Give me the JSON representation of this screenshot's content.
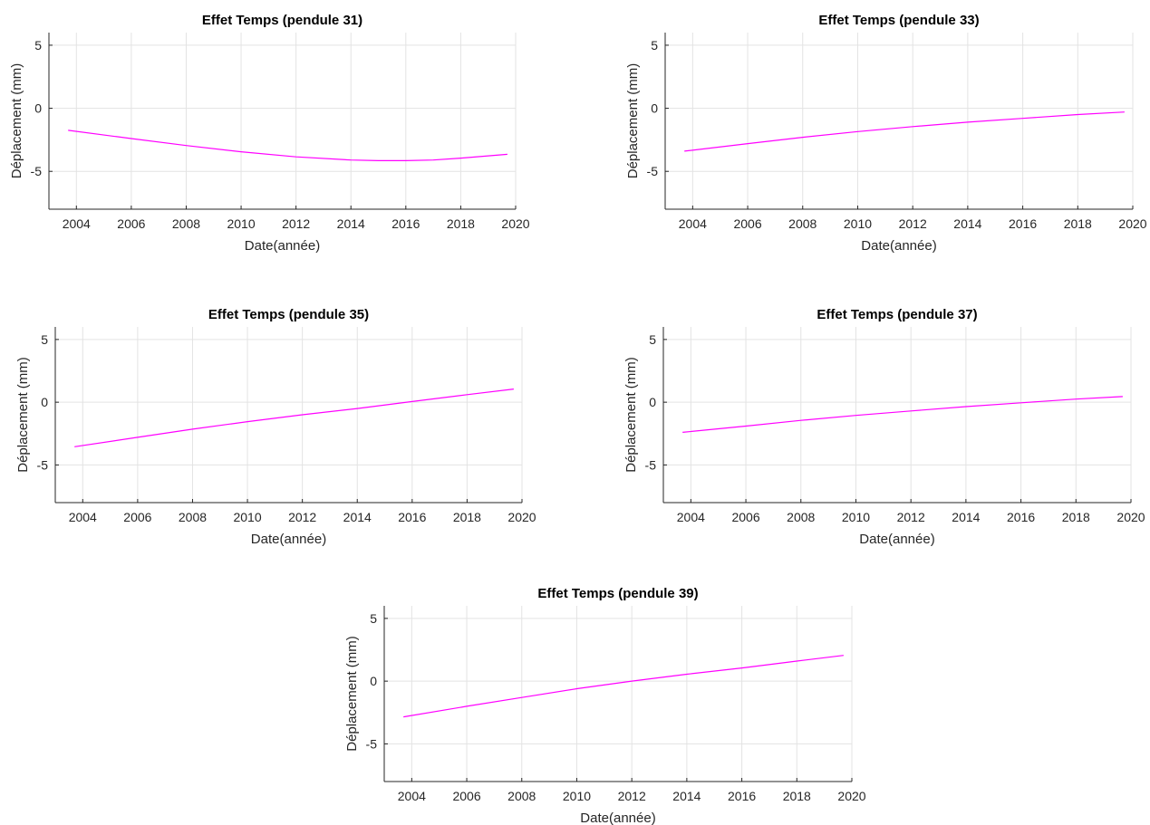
{
  "chart_data": [
    {
      "type": "line",
      "title": "Effet Temps (pendule 31)",
      "xlabel": "Date(année)",
      "ylabel": "Déplacement (mm)",
      "xlim": [
        2003,
        2020
      ],
      "ylim": [
        -8,
        6
      ],
      "xticks": [
        2004,
        2006,
        2008,
        2010,
        2012,
        2014,
        2016,
        2018,
        2020
      ],
      "yticks": [
        -5,
        0,
        5
      ],
      "grid": true,
      "series": [
        {
          "color": "#ff00ff",
          "x": [
            2003.7,
            2006,
            2008,
            2010,
            2012,
            2014,
            2015,
            2016,
            2017,
            2018,
            2019.7
          ],
          "y": [
            -1.75,
            -2.4,
            -2.95,
            -3.45,
            -3.85,
            -4.1,
            -4.15,
            -4.15,
            -4.1,
            -3.95,
            -3.65
          ]
        }
      ]
    },
    {
      "type": "line",
      "title": "Effet Temps (pendule 33)",
      "xlabel": "Date(année)",
      "ylabel": "Déplacement (mm)",
      "xlim": [
        2003,
        2020
      ],
      "ylim": [
        -8,
        6
      ],
      "xticks": [
        2004,
        2006,
        2008,
        2010,
        2012,
        2014,
        2016,
        2018,
        2020
      ],
      "yticks": [
        -5,
        0,
        5
      ],
      "grid": true,
      "series": [
        {
          "color": "#ff00ff",
          "x": [
            2003.7,
            2006,
            2008,
            2010,
            2012,
            2014,
            2016,
            2018,
            2019.7
          ],
          "y": [
            -3.4,
            -2.8,
            -2.3,
            -1.85,
            -1.45,
            -1.1,
            -0.8,
            -0.5,
            -0.3
          ]
        }
      ]
    },
    {
      "type": "line",
      "title": "Effet Temps (pendule 35)",
      "xlabel": "Date(année)",
      "ylabel": "Déplacement (mm)",
      "xlim": [
        2003,
        2020
      ],
      "ylim": [
        -8,
        6
      ],
      "xticks": [
        2004,
        2006,
        2008,
        2010,
        2012,
        2014,
        2016,
        2018,
        2020
      ],
      "yticks": [
        -5,
        0,
        5
      ],
      "grid": true,
      "series": [
        {
          "color": "#ff00ff",
          "x": [
            2003.7,
            2006,
            2008,
            2010,
            2012,
            2014,
            2016,
            2018,
            2019.7
          ],
          "y": [
            -3.55,
            -2.8,
            -2.15,
            -1.55,
            -1.0,
            -0.5,
            0.05,
            0.6,
            1.05
          ]
        }
      ]
    },
    {
      "type": "line",
      "title": "Effet Temps (pendule 37)",
      "xlabel": "Date(année)",
      "ylabel": "Déplacement (mm)",
      "xlim": [
        2003,
        2020
      ],
      "ylim": [
        -8,
        6
      ],
      "xticks": [
        2004,
        2006,
        2008,
        2010,
        2012,
        2014,
        2016,
        2018,
        2020
      ],
      "yticks": [
        -5,
        0,
        5
      ],
      "grid": true,
      "series": [
        {
          "color": "#ff00ff",
          "x": [
            2003.7,
            2006,
            2008,
            2010,
            2012,
            2014,
            2016,
            2018,
            2019.7
          ],
          "y": [
            -2.4,
            -1.9,
            -1.45,
            -1.05,
            -0.7,
            -0.35,
            -0.05,
            0.25,
            0.45
          ]
        }
      ]
    },
    {
      "type": "line",
      "title": "Effet Temps (pendule 39)",
      "xlabel": "Date(année)",
      "ylabel": "Déplacement (mm)",
      "xlim": [
        2003,
        2020
      ],
      "ylim": [
        -8,
        6
      ],
      "xticks": [
        2004,
        2006,
        2008,
        2010,
        2012,
        2014,
        2016,
        2018,
        2020
      ],
      "yticks": [
        -5,
        0,
        5
      ],
      "grid": true,
      "series": [
        {
          "color": "#ff00ff",
          "x": [
            2003.7,
            2006,
            2008,
            2010,
            2012,
            2014,
            2016,
            2018,
            2019.7
          ],
          "y": [
            -2.85,
            -2.0,
            -1.3,
            -0.6,
            0.0,
            0.55,
            1.05,
            1.6,
            2.05
          ]
        }
      ]
    }
  ]
}
